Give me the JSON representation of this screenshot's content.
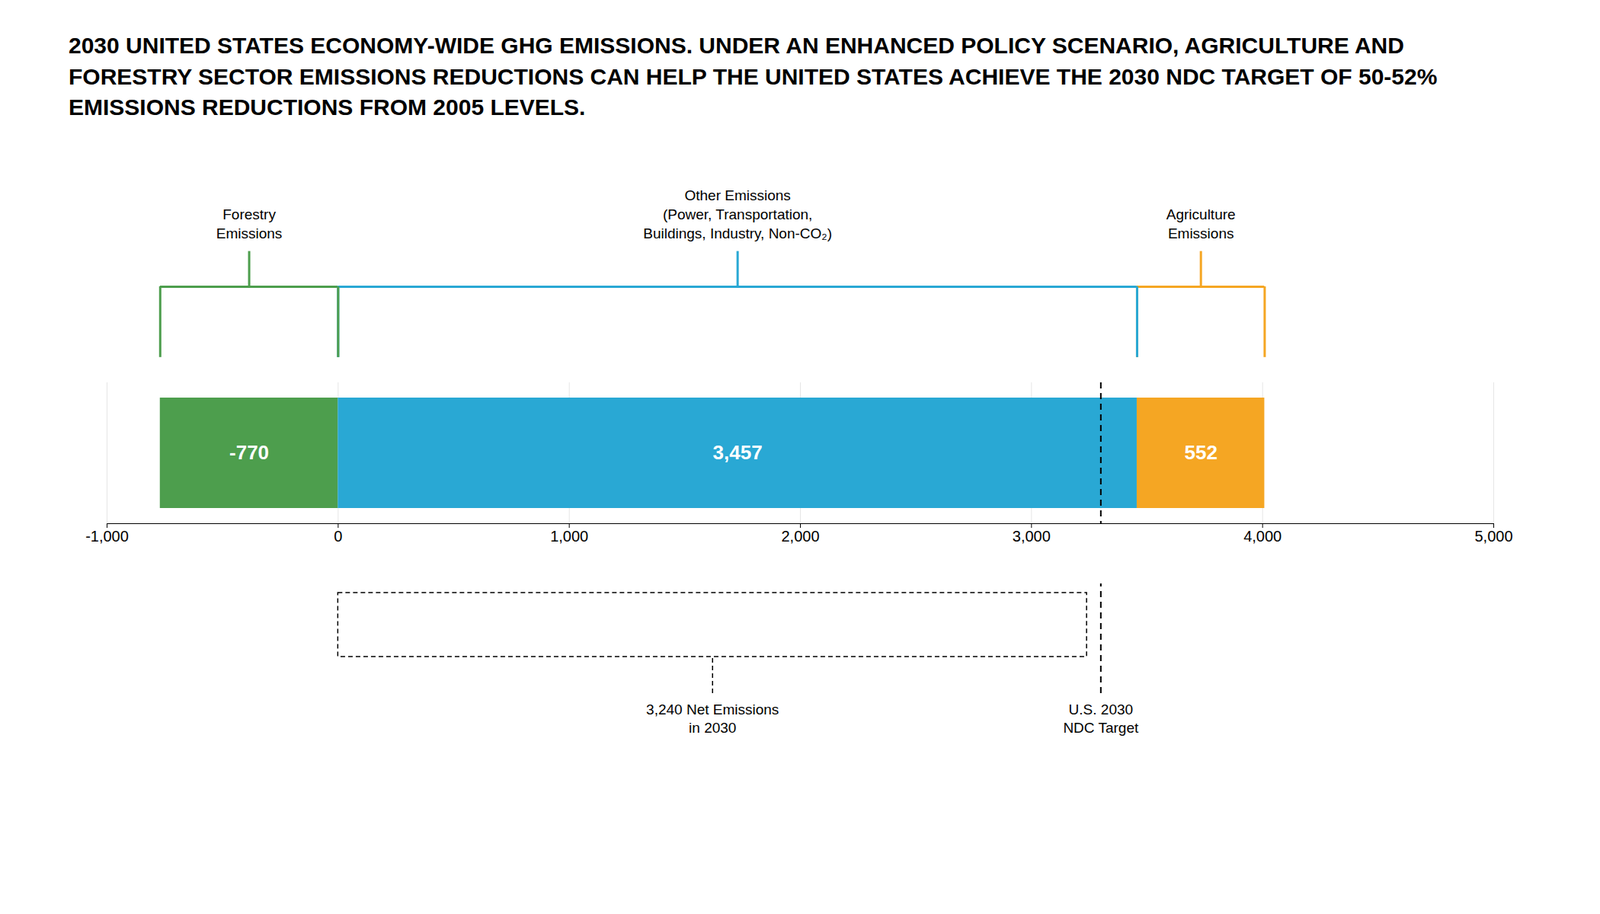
{
  "chart_data": {
    "type": "bar",
    "orientation": "horizontal",
    "stacked": true,
    "data_labels": true,
    "grid": true,
    "title": "2030 UNITED STATES ECONOMY-WIDE GHG EMISSIONS. UNDER AN ENHANCED POLICY SCENARIO, AGRICULTURE AND FORESTRY SECTOR EMISSIONS REDUCTIONS CAN HELP THE UNITED STATES ACHIEVE THE 2030 NDC TARGET OF 50-52% EMISSIONS REDUCTIONS FROM 2005 LEVELS.",
    "categories": [
      null
    ],
    "series": [
      {
        "name": "Forestry\nEmissions",
        "color": "#4d9e4d",
        "values": [
          -770
        ]
      },
      {
        "name": "Other Emissions\n(Power, Transportation,\nBuildings, Industry, Non-CO₂)",
        "color": "#29a8d4",
        "values": [
          3457
        ],
        "value_labels": [
          "3,457"
        ]
      },
      {
        "name": "Agriculture\nEmissions",
        "color": "#f5a623",
        "values": [
          552
        ]
      }
    ],
    "xlim": [
      -1000,
      5000
    ],
    "xticks": [
      {
        "value": -1000,
        "label": "-1,000"
      },
      0,
      {
        "value": 1000,
        "label": "1,000"
      },
      {
        "value": 2000,
        "label": "2,000"
      },
      {
        "value": 3000,
        "label": "3,000"
      },
      {
        "value": 4000,
        "label": "4,000"
      },
      {
        "value": 5000,
        "label": "5,000"
      }
    ],
    "annotations": [
      {
        "text": "3,240 Net Emissions\nin 2030",
        "x1": 0,
        "x2": 3240
      },
      {
        "text": "U.S. 2030\nNDC Target",
        "x": 3300
      }
    ]
  }
}
